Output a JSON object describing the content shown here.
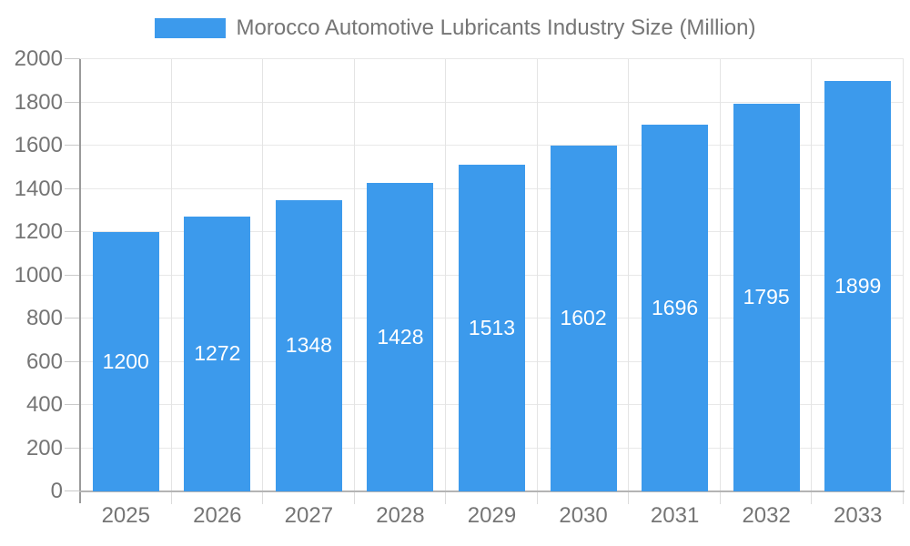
{
  "chart_data": {
    "type": "bar",
    "title": "Morocco Automotive Lubricants Industry Size (Million)",
    "categories": [
      "2025",
      "2026",
      "2027",
      "2028",
      "2029",
      "2030",
      "2031",
      "2032",
      "2033"
    ],
    "values": [
      1200,
      1272,
      1348,
      1428,
      1513,
      1602,
      1696,
      1795,
      1899
    ],
    "xlabel": "",
    "ylabel": "",
    "ylim": [
      0,
      2000
    ],
    "y_ticks": [
      0,
      200,
      400,
      600,
      800,
      1000,
      1200,
      1400,
      1600,
      1800,
      2000
    ],
    "grid": true,
    "legend_position": "top",
    "value_label_position": "inside-center"
  },
  "colors": {
    "bar": "#3C9AEC",
    "legend_text": "#757575",
    "axis_text": "#757575",
    "value_text": "#FFFFFF",
    "y_axis_line": "#9A9A9A",
    "x_axis_line": "#B4B4B4",
    "h_gridline": "#E8E8E8",
    "v_gridline": "#E4E4E4",
    "y_tick": "#CACACA",
    "x_tick": "#DCDCDC",
    "background": "#FFFFFF"
  }
}
